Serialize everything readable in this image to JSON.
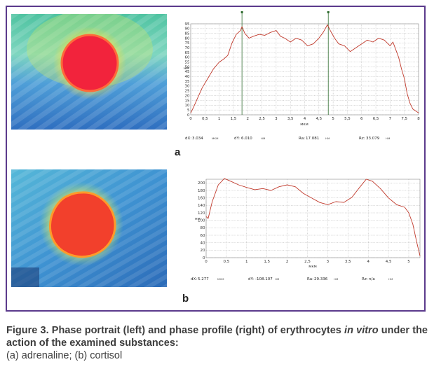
{
  "figure": {
    "caption_line1": "Figure 3. Phase portrait (left) and phase profile (right) of erythrocytes",
    "caption_italic": "in vitro",
    "caption_line2_rest": " under the action of the examined substances:",
    "caption_line3": "(a) adrenaline; (b) cortisol"
  },
  "panels": {
    "a": {
      "label": "a"
    },
    "b": {
      "label": "b"
    }
  },
  "chart_data": [
    {
      "type": "line",
      "panel": "a",
      "ylabel": "нм",
      "xlabel": "мкм",
      "xlim": [
        0,
        8
      ],
      "ylim": [
        0,
        95
      ],
      "x_ticks": [
        "0",
        "0,5",
        "1",
        "1,5",
        "2",
        "2,5",
        "3",
        "3,5",
        "4",
        "4,5",
        "5",
        "5,5",
        "6",
        "6,5",
        "7",
        "7,5",
        "8"
      ],
      "y_ticks": [
        "0",
        "5",
        "10",
        "15",
        "20",
        "25",
        "30",
        "35",
        "40",
        "45",
        "50",
        "55",
        "60",
        "65",
        "70",
        "75",
        "80",
        "85",
        "90",
        "95"
      ],
      "grid": true,
      "cursors_x": [
        1.8,
        4.83
      ],
      "series": [
        {
          "color": "#c0392b",
          "x": [
            0,
            0.1,
            0.25,
            0.4,
            0.6,
            0.8,
            1.0,
            1.15,
            1.3,
            1.45,
            1.6,
            1.75,
            1.8,
            1.9,
            2.05,
            2.2,
            2.4,
            2.6,
            2.8,
            3.0,
            3.15,
            3.3,
            3.5,
            3.7,
            3.9,
            4.1,
            4.3,
            4.5,
            4.65,
            4.8,
            4.9,
            5.05,
            5.2,
            5.4,
            5.6,
            5.8,
            6.0,
            6.2,
            6.4,
            6.6,
            6.8,
            7.0,
            7.1,
            7.2,
            7.3,
            7.4,
            7.5,
            7.6,
            7.7,
            7.8,
            7.9,
            8.0
          ],
          "y": [
            2,
            8,
            18,
            28,
            38,
            48,
            55,
            58,
            62,
            75,
            84,
            88,
            92,
            85,
            80,
            82,
            84,
            83,
            86,
            88,
            82,
            80,
            76,
            80,
            78,
            72,
            74,
            80,
            86,
            94,
            88,
            80,
            74,
            72,
            66,
            70,
            74,
            78,
            76,
            80,
            78,
            72,
            76,
            68,
            60,
            48,
            38,
            22,
            12,
            6,
            4,
            2
          ]
        }
      ],
      "readouts": [
        {
          "label": "dX:",
          "value": "3.034",
          "unit": "мкм"
        },
        {
          "label": "dY:",
          "value": "6.010",
          "unit": "нм"
        },
        {
          "label": "Ra:",
          "value": "17.081",
          "unit": "нм"
        },
        {
          "label": "Rz:",
          "value": "33.079",
          "unit": "нм"
        }
      ]
    },
    {
      "type": "line",
      "panel": "b",
      "ylabel": "нм",
      "xlabel": "мкм",
      "xlim": [
        0,
        5.277
      ],
      "ylim": [
        0,
        210
      ],
      "x_ticks": [
        "0",
        "0,5",
        "1",
        "1,5",
        "2",
        "2,5",
        "3",
        "3,5",
        "4",
        "4,5",
        "5"
      ],
      "y_ticks": [
        "0",
        "20",
        "40",
        "60",
        "80",
        "100",
        "120",
        "140",
        "160",
        "180",
        "200"
      ],
      "grid": true,
      "series": [
        {
          "color": "#c0392b",
          "x": [
            0,
            0.05,
            0.15,
            0.3,
            0.45,
            0.6,
            0.8,
            1.0,
            1.2,
            1.4,
            1.6,
            1.8,
            2.0,
            2.2,
            2.4,
            2.6,
            2.8,
            3.0,
            3.2,
            3.4,
            3.6,
            3.8,
            3.95,
            4.1,
            4.3,
            4.5,
            4.7,
            4.9,
            5.0,
            5.1,
            5.2,
            5.277
          ],
          "y": [
            110,
            105,
            150,
            195,
            212,
            205,
            195,
            188,
            182,
            185,
            180,
            190,
            195,
            190,
            172,
            160,
            148,
            142,
            150,
            148,
            162,
            190,
            210,
            205,
            185,
            160,
            142,
            135,
            120,
            90,
            40,
            5
          ]
        }
      ],
      "readouts": [
        {
          "label": "dX:",
          "value": "5.277",
          "unit": "мкм"
        },
        {
          "label": "dY:",
          "value": "-108.107",
          "unit": "нм"
        },
        {
          "label": "Ra:",
          "value": "29.336",
          "unit": "нм"
        },
        {
          "label": "Rz:",
          "value": "n/a",
          "unit": "нм"
        }
      ]
    }
  ]
}
